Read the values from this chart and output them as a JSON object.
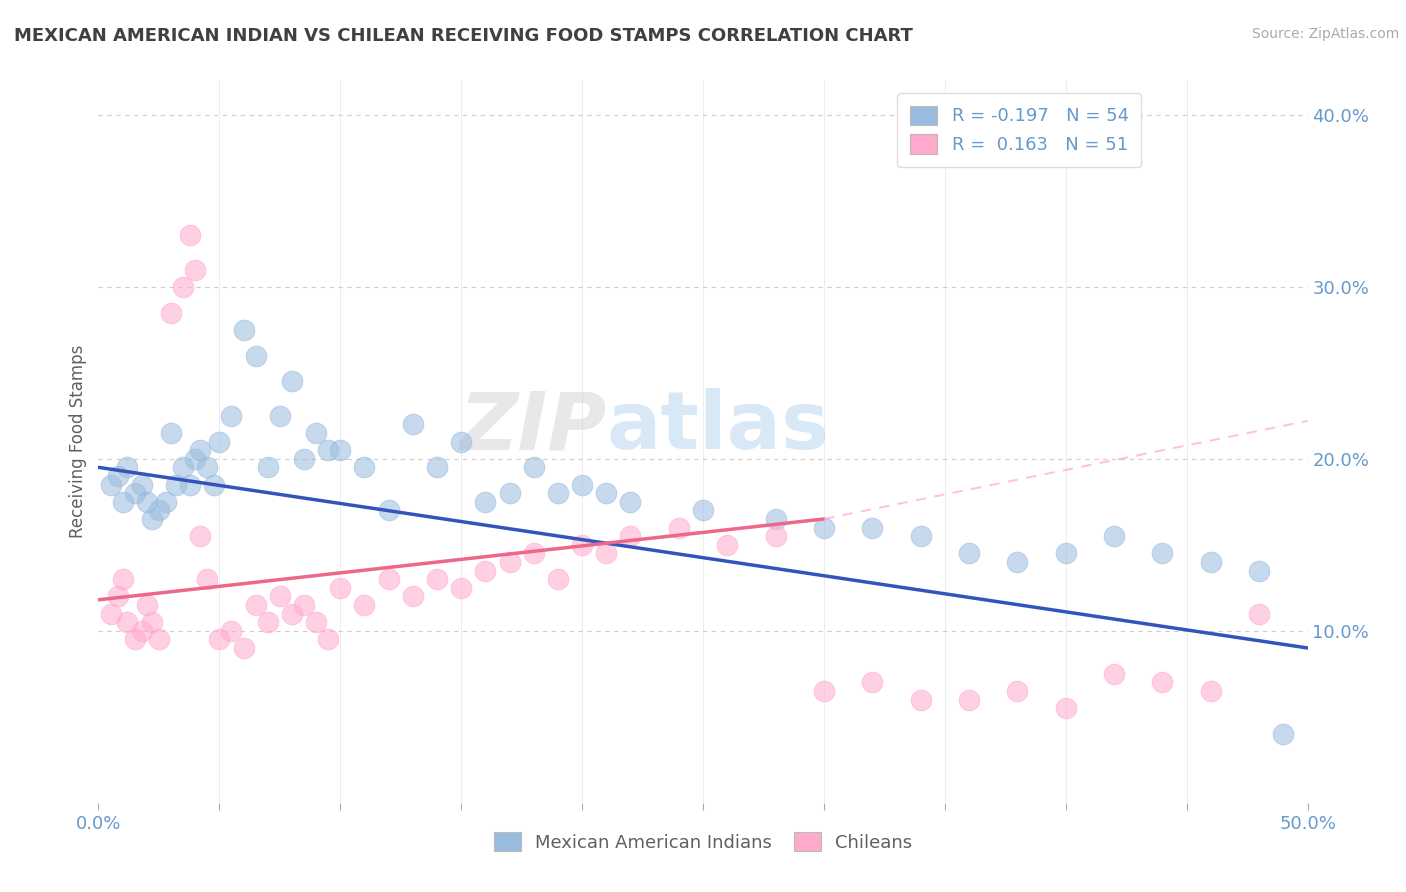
{
  "title": "MEXICAN AMERICAN INDIAN VS CHILEAN RECEIVING FOOD STAMPS CORRELATION CHART",
  "source_text": "Source: ZipAtlas.com",
  "ylabel": "Receiving Food Stamps",
  "xlim": [
    0.0,
    0.5
  ],
  "ylim": [
    0.0,
    0.42
  ],
  "xticks": [
    0.0,
    0.05,
    0.1,
    0.15,
    0.2,
    0.25,
    0.3,
    0.35,
    0.4,
    0.45,
    0.5
  ],
  "ytick_positions": [
    0.1,
    0.2,
    0.3,
    0.4
  ],
  "ytick_labels": [
    "10.0%",
    "20.0%",
    "30.0%",
    "40.0%"
  ],
  "xtick_labels": [
    "0.0%",
    "",
    "",
    "",
    "",
    "",
    "",
    "",
    "",
    "",
    "50.0%"
  ],
  "blue_color": "#99BBDD",
  "pink_color": "#FFAACC",
  "blue_line_color": "#3355BB",
  "pink_line_color": "#EE6688",
  "pink_line_ext_color": "#FFAACC",
  "legend_r_blue": "-0.197",
  "legend_n_blue": "54",
  "legend_r_pink": "0.163",
  "legend_n_pink": "51",
  "watermark_zip": "ZIP",
  "watermark_atlas": "atlas",
  "blue_scatter_x": [
    0.005,
    0.008,
    0.01,
    0.012,
    0.015,
    0.018,
    0.02,
    0.022,
    0.025,
    0.028,
    0.03,
    0.032,
    0.035,
    0.038,
    0.04,
    0.042,
    0.045,
    0.048,
    0.05,
    0.055,
    0.06,
    0.065,
    0.07,
    0.075,
    0.08,
    0.085,
    0.09,
    0.095,
    0.1,
    0.11,
    0.12,
    0.13,
    0.14,
    0.15,
    0.16,
    0.17,
    0.18,
    0.19,
    0.2,
    0.21,
    0.22,
    0.25,
    0.28,
    0.3,
    0.32,
    0.34,
    0.36,
    0.38,
    0.4,
    0.42,
    0.44,
    0.46,
    0.48,
    0.49
  ],
  "blue_scatter_y": [
    0.185,
    0.19,
    0.175,
    0.195,
    0.18,
    0.185,
    0.175,
    0.165,
    0.17,
    0.175,
    0.215,
    0.185,
    0.195,
    0.185,
    0.2,
    0.205,
    0.195,
    0.185,
    0.21,
    0.225,
    0.275,
    0.26,
    0.195,
    0.225,
    0.245,
    0.2,
    0.215,
    0.205,
    0.205,
    0.195,
    0.17,
    0.22,
    0.195,
    0.21,
    0.175,
    0.18,
    0.195,
    0.18,
    0.185,
    0.18,
    0.175,
    0.17,
    0.165,
    0.16,
    0.16,
    0.155,
    0.145,
    0.14,
    0.145,
    0.155,
    0.145,
    0.14,
    0.135,
    0.04
  ],
  "pink_scatter_x": [
    0.005,
    0.008,
    0.01,
    0.012,
    0.015,
    0.018,
    0.02,
    0.022,
    0.025,
    0.03,
    0.035,
    0.038,
    0.04,
    0.042,
    0.045,
    0.05,
    0.055,
    0.06,
    0.065,
    0.07,
    0.075,
    0.08,
    0.085,
    0.09,
    0.095,
    0.1,
    0.11,
    0.12,
    0.13,
    0.14,
    0.15,
    0.16,
    0.17,
    0.18,
    0.19,
    0.2,
    0.21,
    0.22,
    0.24,
    0.26,
    0.28,
    0.3,
    0.32,
    0.34,
    0.36,
    0.38,
    0.4,
    0.42,
    0.44,
    0.46,
    0.48
  ],
  "pink_scatter_y": [
    0.11,
    0.12,
    0.13,
    0.105,
    0.095,
    0.1,
    0.115,
    0.105,
    0.095,
    0.285,
    0.3,
    0.33,
    0.31,
    0.155,
    0.13,
    0.095,
    0.1,
    0.09,
    0.115,
    0.105,
    0.12,
    0.11,
    0.115,
    0.105,
    0.095,
    0.125,
    0.115,
    0.13,
    0.12,
    0.13,
    0.125,
    0.135,
    0.14,
    0.145,
    0.13,
    0.15,
    0.145,
    0.155,
    0.16,
    0.15,
    0.155,
    0.065,
    0.07,
    0.06,
    0.06,
    0.065,
    0.055,
    0.075,
    0.07,
    0.065,
    0.11
  ],
  "blue_line_x0": 0.0,
  "blue_line_x1": 0.5,
  "blue_line_y0": 0.195,
  "blue_line_y1": 0.09,
  "pink_line_solid_x0": 0.0,
  "pink_line_solid_x1": 0.3,
  "pink_line_solid_y0": 0.118,
  "pink_line_solid_y1": 0.165,
  "pink_line_dash_x0": 0.3,
  "pink_line_dash_x1": 0.5,
  "pink_line_dash_y0": 0.165,
  "pink_line_dash_y1": 0.222,
  "grid_color": "#CCCCCC",
  "background_color": "#FFFFFF",
  "title_color": "#404040",
  "axis_label_color": "#606060",
  "tick_label_color": "#6699CC",
  "source_color": "#AAAAAA"
}
